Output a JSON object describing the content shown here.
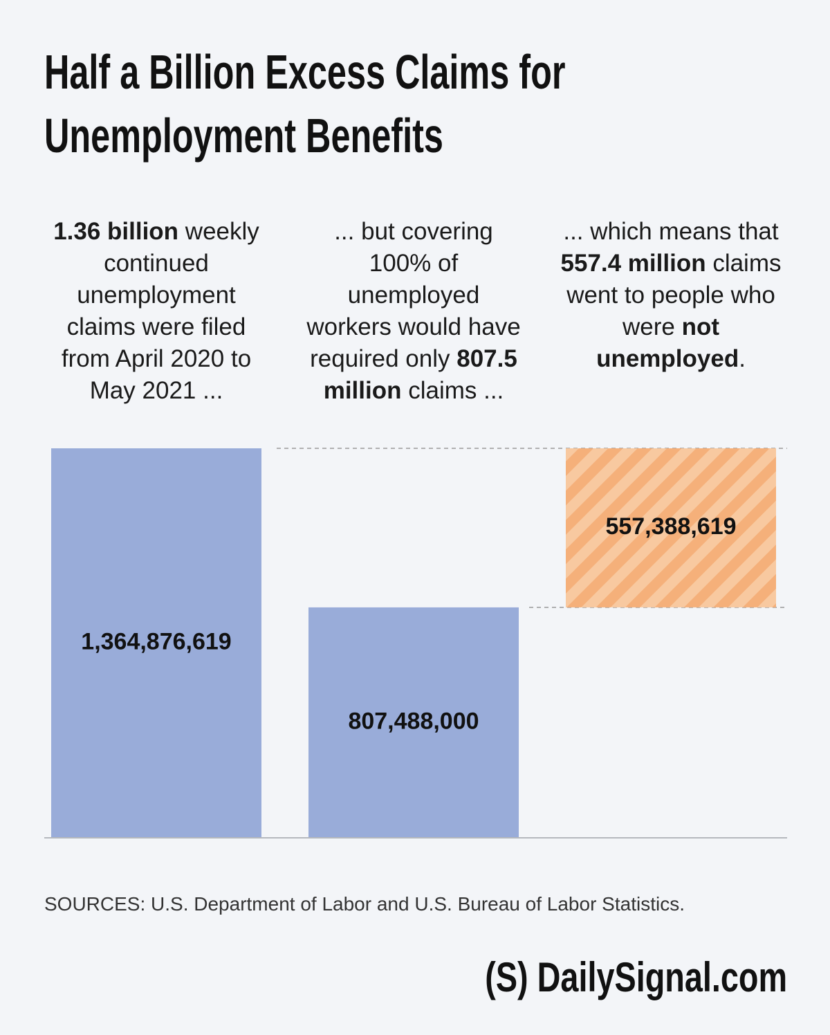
{
  "chart_data": {
    "type": "waterfall",
    "title": "Half a Billion Excess Claims for Unemployment Benefits",
    "annotations": [
      [
        {
          "text": "1.36 billion",
          "bold": true
        },
        {
          "text": " weekly continued unemployment claims were filed from April 2020 to May 2021 ..."
        }
      ],
      [
        {
          "text": "... but covering 100% of unemployed workers would have required only "
        },
        {
          "text": "807.5 million",
          "bold": true
        },
        {
          "text": " claims ..."
        }
      ],
      [
        {
          "text": "... which means that "
        },
        {
          "text": "557.4 million",
          "bold": true
        },
        {
          "text": " claims went to people who were "
        },
        {
          "text": "not unemployed",
          "bold": true
        },
        {
          "text": "."
        }
      ]
    ],
    "values": [
      1364876619,
      807488000,
      557388619
    ],
    "value_labels": [
      "1,364,876,619",
      "807,488,000",
      "557,388,619"
    ],
    "colors": [
      "#99acd9",
      "#99acd9",
      "#f5a96b"
    ],
    "hatched": [
      false,
      false,
      true
    ],
    "stack_on_previous": [
      false,
      false,
      true
    ],
    "source": "SOURCES: U.S. Department of Labor and U.S. Bureau of Labor Statistics.",
    "logo": {
      "mark": "(S)",
      "text": "DailySignal.com"
    }
  }
}
